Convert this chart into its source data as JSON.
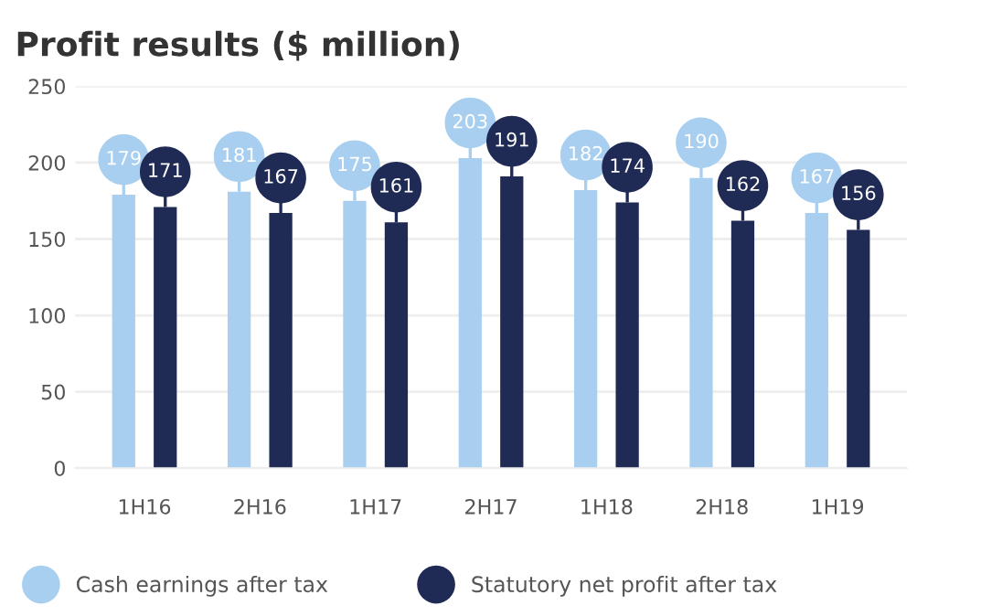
{
  "chart_data": {
    "type": "bar",
    "title": "Profit results ($ million)",
    "categories": [
      "1H16",
      "2H16",
      "1H17",
      "2H17",
      "1H18",
      "2H18",
      "1H19"
    ],
    "series": [
      {
        "name": "Cash earnings after tax",
        "color": "#a8cfef",
        "values": [
          179,
          181,
          175,
          203,
          182,
          190,
          167
        ]
      },
      {
        "name": "Statutory net profit after tax",
        "color": "#1f2a55",
        "values": [
          171,
          167,
          161,
          191,
          174,
          162,
          156
        ]
      }
    ],
    "ylim": [
      0,
      250
    ],
    "yticks": [
      0,
      50,
      100,
      150,
      200,
      250
    ],
    "grid": "y",
    "legend": "bottom",
    "data_labels": true
  }
}
